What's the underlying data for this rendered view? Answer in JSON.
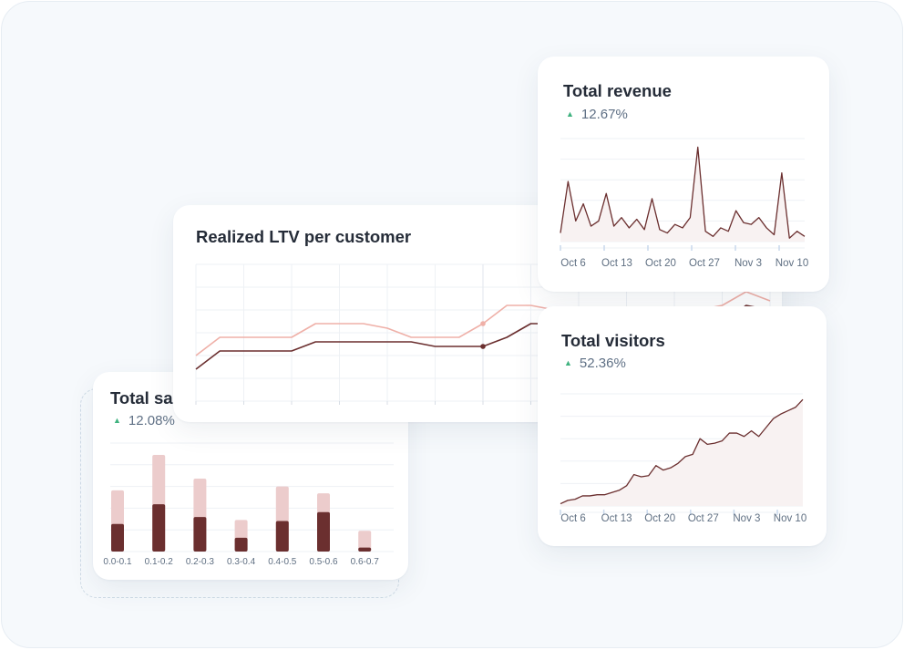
{
  "cards": {
    "sales": {
      "title": "Total sales",
      "delta": "12.08%"
    },
    "ltv": {
      "title": "Realized LTV per customer"
    },
    "revenue": {
      "title": "Total revenue",
      "delta": "12.67%"
    },
    "visitors": {
      "title": "Total visitors",
      "delta": "52.36%"
    }
  },
  "colors": {
    "accent_dark": "#6b2f2f",
    "accent_light": "#eccccc",
    "accent_pink": "#efb0a8",
    "positive": "#3fb27f"
  },
  "icons": {
    "trend": "triangle-up-icon"
  },
  "chart_data": [
    {
      "id": "sales",
      "type": "bar",
      "categories": [
        "0.0-0.1",
        "0.1-0.2",
        "0.2-0.3",
        "0.3-0.4",
        "0.4-0.5",
        "0.5-0.6",
        "0.6-0.7"
      ],
      "series": [
        {
          "values": [
            28,
            48,
            35,
            14,
            31,
            40,
            4
          ]
        },
        {
          "values": [
            62,
            98,
            74,
            32,
            66,
            59,
            21
          ]
        }
      ],
      "ylim": [
        0,
        110
      ],
      "grid": true
    },
    {
      "id": "ltv",
      "type": "line",
      "x": [
        0,
        1,
        2,
        3,
        4,
        5,
        6,
        7,
        8,
        9,
        10,
        11,
        12,
        13,
        14,
        15,
        16,
        17,
        18,
        19,
        20,
        21,
        22,
        23,
        24
      ],
      "series": [
        {
          "values": [
            14,
            22,
            22,
            22,
            22,
            26,
            26,
            26,
            26,
            26,
            24,
            24,
            24,
            28,
            34,
            34,
            30,
            30,
            30,
            30,
            30,
            30,
            34,
            42,
            40
          ]
        },
        {
          "values": [
            20,
            28,
            28,
            28,
            28,
            34,
            34,
            34,
            32,
            28,
            28,
            28,
            34,
            42,
            42,
            40,
            40,
            40,
            40,
            40,
            40,
            40,
            42,
            48,
            44
          ]
        }
      ],
      "ylim": [
        0,
        60
      ],
      "grid": true
    },
    {
      "id": "revenue",
      "type": "area",
      "x_ticks": [
        "Oct 6",
        "Oct 13",
        "Oct 20",
        "Oct 27",
        "Nov 3",
        "Nov 10"
      ],
      "values": [
        5,
        35,
        12,
        22,
        9,
        12,
        28,
        9,
        14,
        8,
        13,
        7,
        25,
        7,
        5,
        10,
        8,
        14,
        55,
        6,
        3,
        8,
        6,
        18,
        11,
        10,
        14,
        8,
        4,
        40,
        2,
        6,
        3
      ],
      "ylim": [
        0,
        60
      ],
      "grid": true
    },
    {
      "id": "visitors",
      "type": "area",
      "x_ticks": [
        "Oct 6",
        "Oct 13",
        "Oct 20",
        "Oct 27",
        "Nov 3",
        "Nov 10"
      ],
      "values": [
        2,
        5,
        6,
        9,
        9,
        10,
        10,
        12,
        14,
        18,
        28,
        26,
        27,
        36,
        32,
        34,
        38,
        44,
        46,
        60,
        55,
        56,
        58,
        65,
        65,
        62,
        67,
        62,
        70,
        78,
        82,
        85,
        88,
        95
      ],
      "ylim": [
        0,
        100
      ],
      "grid": true
    }
  ]
}
